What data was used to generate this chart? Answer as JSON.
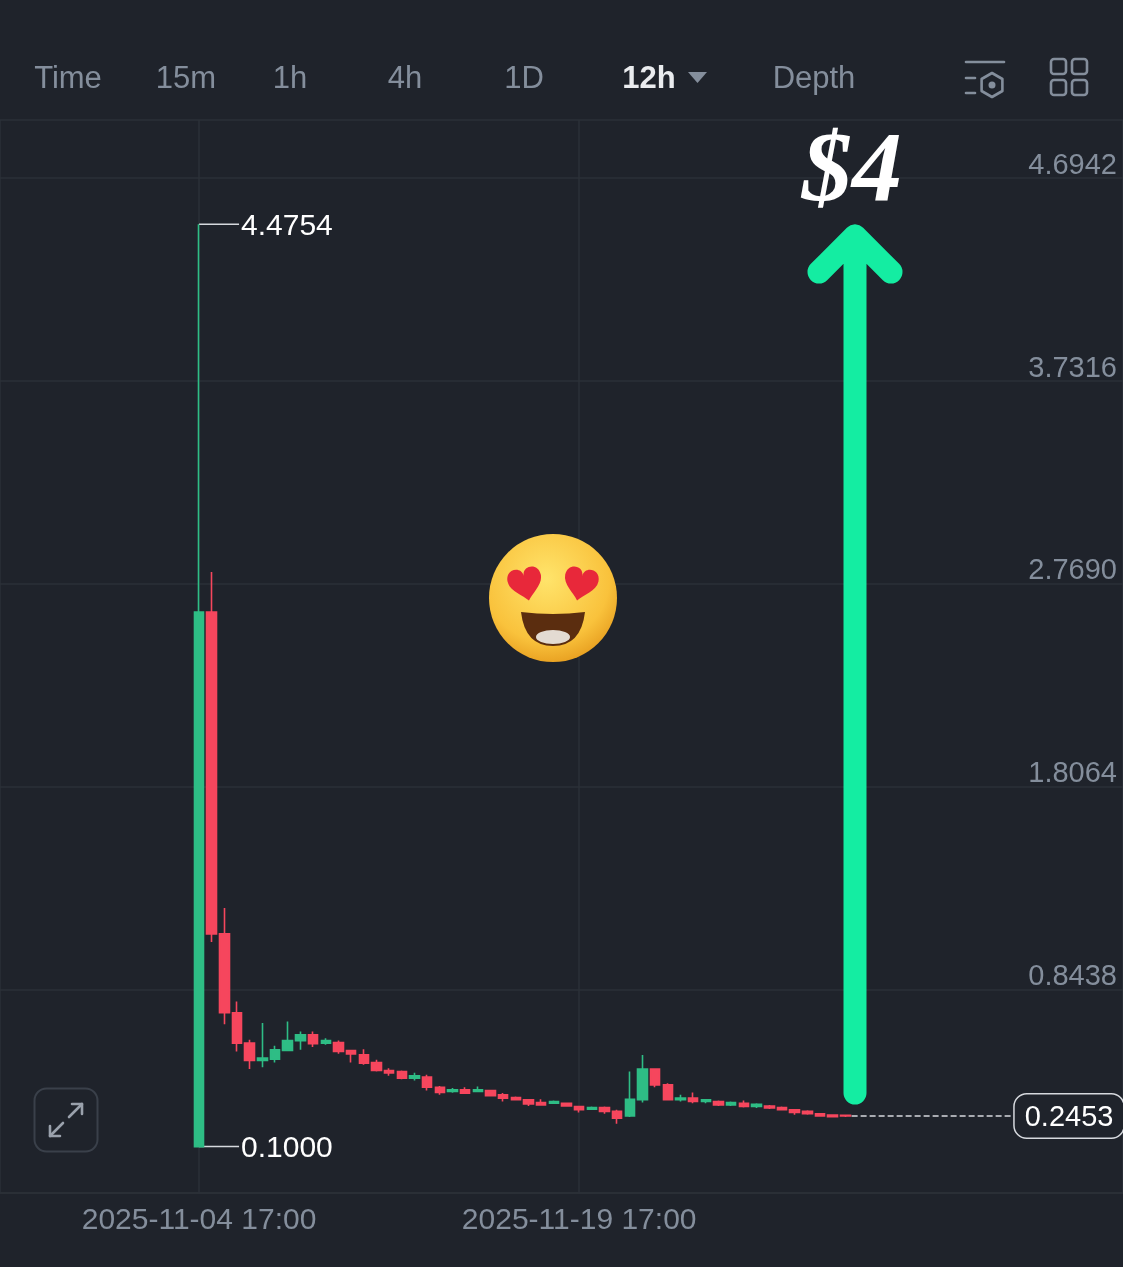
{
  "chart_data": [
    {
      "type": "other",
      "annotations": [
        "Time",
        "15m",
        "1h",
        "4h",
        "1D",
        "12h",
        "Depth"
      ]
    },
    {
      "type": "candlestick",
      "x": [
        "2025-11-04T17:00",
        "2025-11-05T05:00",
        "2025-11-05T17:00",
        "2025-11-06T05:00",
        "2025-11-06T17:00",
        "2025-11-07T05:00",
        "2025-11-07T17:00",
        "2025-11-08T05:00",
        "2025-11-08T17:00",
        "2025-11-09T05:00",
        "2025-11-09T17:00",
        "2025-11-10T05:00",
        "2025-11-10T17:00",
        "2025-11-11T05:00",
        "2025-11-11T17:00",
        "2025-11-12T05:00",
        "2025-11-12T17:00",
        "2025-11-13T05:00",
        "2025-11-13T17:00",
        "2025-11-14T05:00",
        "2025-11-14T17:00",
        "2025-11-15T05:00",
        "2025-11-15T17:00",
        "2025-11-16T05:00",
        "2025-11-16T17:00",
        "2025-11-17T05:00",
        "2025-11-17T17:00",
        "2025-11-18T05:00",
        "2025-11-18T17:00",
        "2025-11-19T05:00",
        "2025-11-19T17:00",
        "2025-11-20T05:00",
        "2025-11-20T17:00",
        "2025-11-21T05:00",
        "2025-11-21T17:00",
        "2025-11-22T05:00",
        "2025-11-22T17:00",
        "2025-11-23T05:00",
        "2025-11-23T17:00",
        "2025-11-24T05:00",
        "2025-11-24T17:00",
        "2025-11-25T05:00",
        "2025-11-25T17:00",
        "2025-11-26T05:00",
        "2025-11-26T17:00",
        "2025-11-27T05:00",
        "2025-11-27T17:00",
        "2025-11-28T05:00",
        "2025-11-28T17:00",
        "2025-11-29T05:00",
        "2025-11-29T17:00",
        "2025-11-30T05:00"
      ],
      "ohlc": [
        [
          0.1,
          4.4754,
          0.1,
          2.636
        ],
        [
          2.636,
          2.826,
          1.071,
          1.109
        ],
        [
          1.109,
          1.232,
          0.68,
          0.735
        ],
        [
          0.735,
          0.788,
          0.551,
          0.591
        ],
        [
          0.591,
          0.607,
          0.468,
          0.509
        ],
        [
          0.509,
          0.686,
          0.477,
          0.52
        ],
        [
          0.515,
          0.578,
          0.499,
          0.559
        ],
        [
          0.556,
          0.693,
          0.556,
          0.603
        ],
        [
          0.603,
          0.646,
          0.559,
          0.63
        ],
        [
          0.63,
          0.646,
          0.572,
          0.588
        ],
        [
          0.591,
          0.614,
          0.583,
          0.603
        ],
        [
          0.594,
          0.603,
          0.54,
          0.551
        ],
        [
          0.556,
          0.559,
          0.499,
          0.54
        ],
        [
          0.535,
          0.562,
          0.488,
          0.496
        ],
        [
          0.499,
          0.512,
          0.456,
          0.461
        ],
        [
          0.461,
          0.472,
          0.436,
          0.449
        ],
        [
          0.456,
          0.461,
          0.42,
          0.425
        ],
        [
          0.425,
          0.451,
          0.414,
          0.436
        ],
        [
          0.43,
          0.441,
          0.366,
          0.382
        ],
        [
          0.382,
          0.388,
          0.346,
          0.357
        ],
        [
          0.362,
          0.378,
          0.355,
          0.37
        ],
        [
          0.37,
          0.382,
          0.351,
          0.354
        ],
        [
          0.362,
          0.385,
          0.359,
          0.37
        ],
        [
          0.366,
          0.37,
          0.338,
          0.341
        ],
        [
          0.346,
          0.354,
          0.314,
          0.33
        ],
        [
          0.333,
          0.338,
          0.319,
          0.322
        ],
        [
          0.322,
          0.325,
          0.293,
          0.303
        ],
        [
          0.309,
          0.325,
          0.296,
          0.298
        ],
        [
          0.306,
          0.319,
          0.303,
          0.314
        ],
        [
          0.306,
          0.309,
          0.29,
          0.293
        ],
        [
          0.29,
          0.293,
          0.262,
          0.275
        ],
        [
          0.278,
          0.29,
          0.275,
          0.285
        ],
        [
          0.285,
          0.29,
          0.256,
          0.267
        ],
        [
          0.267,
          0.275,
          0.208,
          0.235
        ],
        [
          0.246,
          0.456,
          0.24,
          0.325
        ],
        [
          0.322,
          0.535,
          0.309,
          0.468
        ],
        [
          0.468,
          0.472,
          0.382,
          0.393
        ],
        [
          0.393,
          0.401,
          0.319,
          0.322
        ],
        [
          0.322,
          0.346,
          0.314,
          0.33
        ],
        [
          0.33,
          0.357,
          0.306,
          0.314
        ],
        [
          0.314,
          0.325,
          0.306,
          0.322
        ],
        [
          0.314,
          0.319,
          0.293,
          0.298
        ],
        [
          0.298,
          0.314,
          0.293,
          0.309
        ],
        [
          0.306,
          0.319,
          0.285,
          0.29
        ],
        [
          0.29,
          0.306,
          0.283,
          0.301
        ],
        [
          0.293,
          0.298,
          0.278,
          0.283
        ],
        [
          0.285,
          0.29,
          0.272,
          0.275
        ],
        [
          0.275,
          0.278,
          0.251,
          0.262
        ],
        [
          0.267,
          0.272,
          0.251,
          0.256
        ],
        [
          0.256,
          0.259,
          0.243,
          0.246
        ],
        [
          0.25,
          0.252,
          0.238,
          0.242
        ],
        [
          0.248,
          0.252,
          0.24,
          0.2453
        ]
      ],
      "colors": [
        "#2ebd85",
        "#f6465d",
        "#f6465d",
        "#f6465d",
        "#f6465d",
        "#2ebd85",
        "#2ebd85",
        "#2ebd85",
        "#2ebd85",
        "#f6465d",
        "#2ebd85",
        "#f6465d",
        "#f6465d",
        "#f6465d",
        "#f6465d",
        "#f6465d",
        "#f6465d",
        "#2ebd85",
        "#f6465d",
        "#f6465d",
        "#2ebd85",
        "#f6465d",
        "#2ebd85",
        "#f6465d",
        "#f6465d",
        "#f6465d",
        "#f6465d",
        "#f6465d",
        "#2ebd85",
        "#f6465d",
        "#f6465d",
        "#2ebd85",
        "#f6465d",
        "#f6465d",
        "#2ebd85",
        "#2ebd85",
        "#f6465d",
        "#f6465d",
        "#2ebd85",
        "#f6465d",
        "#2ebd85",
        "#f6465d",
        "#2ebd85",
        "#f6465d",
        "#2ebd85",
        "#f6465d",
        "#f6465d",
        "#f6465d",
        "#f6465d",
        "#f6465d",
        "#f6465d",
        "#f6465d"
      ],
      "xlim": [
        "2025-10-27T20:30",
        "2025-12-11T04:00"
      ],
      "ylim": [
        -0.12,
        4.97
      ],
      "xticks": [
        {
          "value": "2025-11-04T17:00",
          "label": "2025-11-04 17:00"
        },
        {
          "value": "2025-11-19T17:00",
          "label": "2025-11-19 17:00"
        }
      ],
      "yticks": [
        0.8438,
        1.8064,
        {
          "value": 2.769,
          "label": "2.7690"
        },
        3.7316,
        4.6942
      ],
      "grid": true,
      "ref_lines": [
        {
          "axis": "y",
          "value": 0.2453,
          "label": "0.2453",
          "color": "#d6d9de",
          "line_style": "dashed"
        }
      ],
      "annotations": [
        "$4",
        {
          "text": "4.4754",
          "x": "2025-11-04T17:00",
          "y": 4.4754
        },
        {
          "text": "0.1000",
          "x": "2025-11-04T17:00",
          "y": 0.1
        }
      ]
    }
  ]
}
